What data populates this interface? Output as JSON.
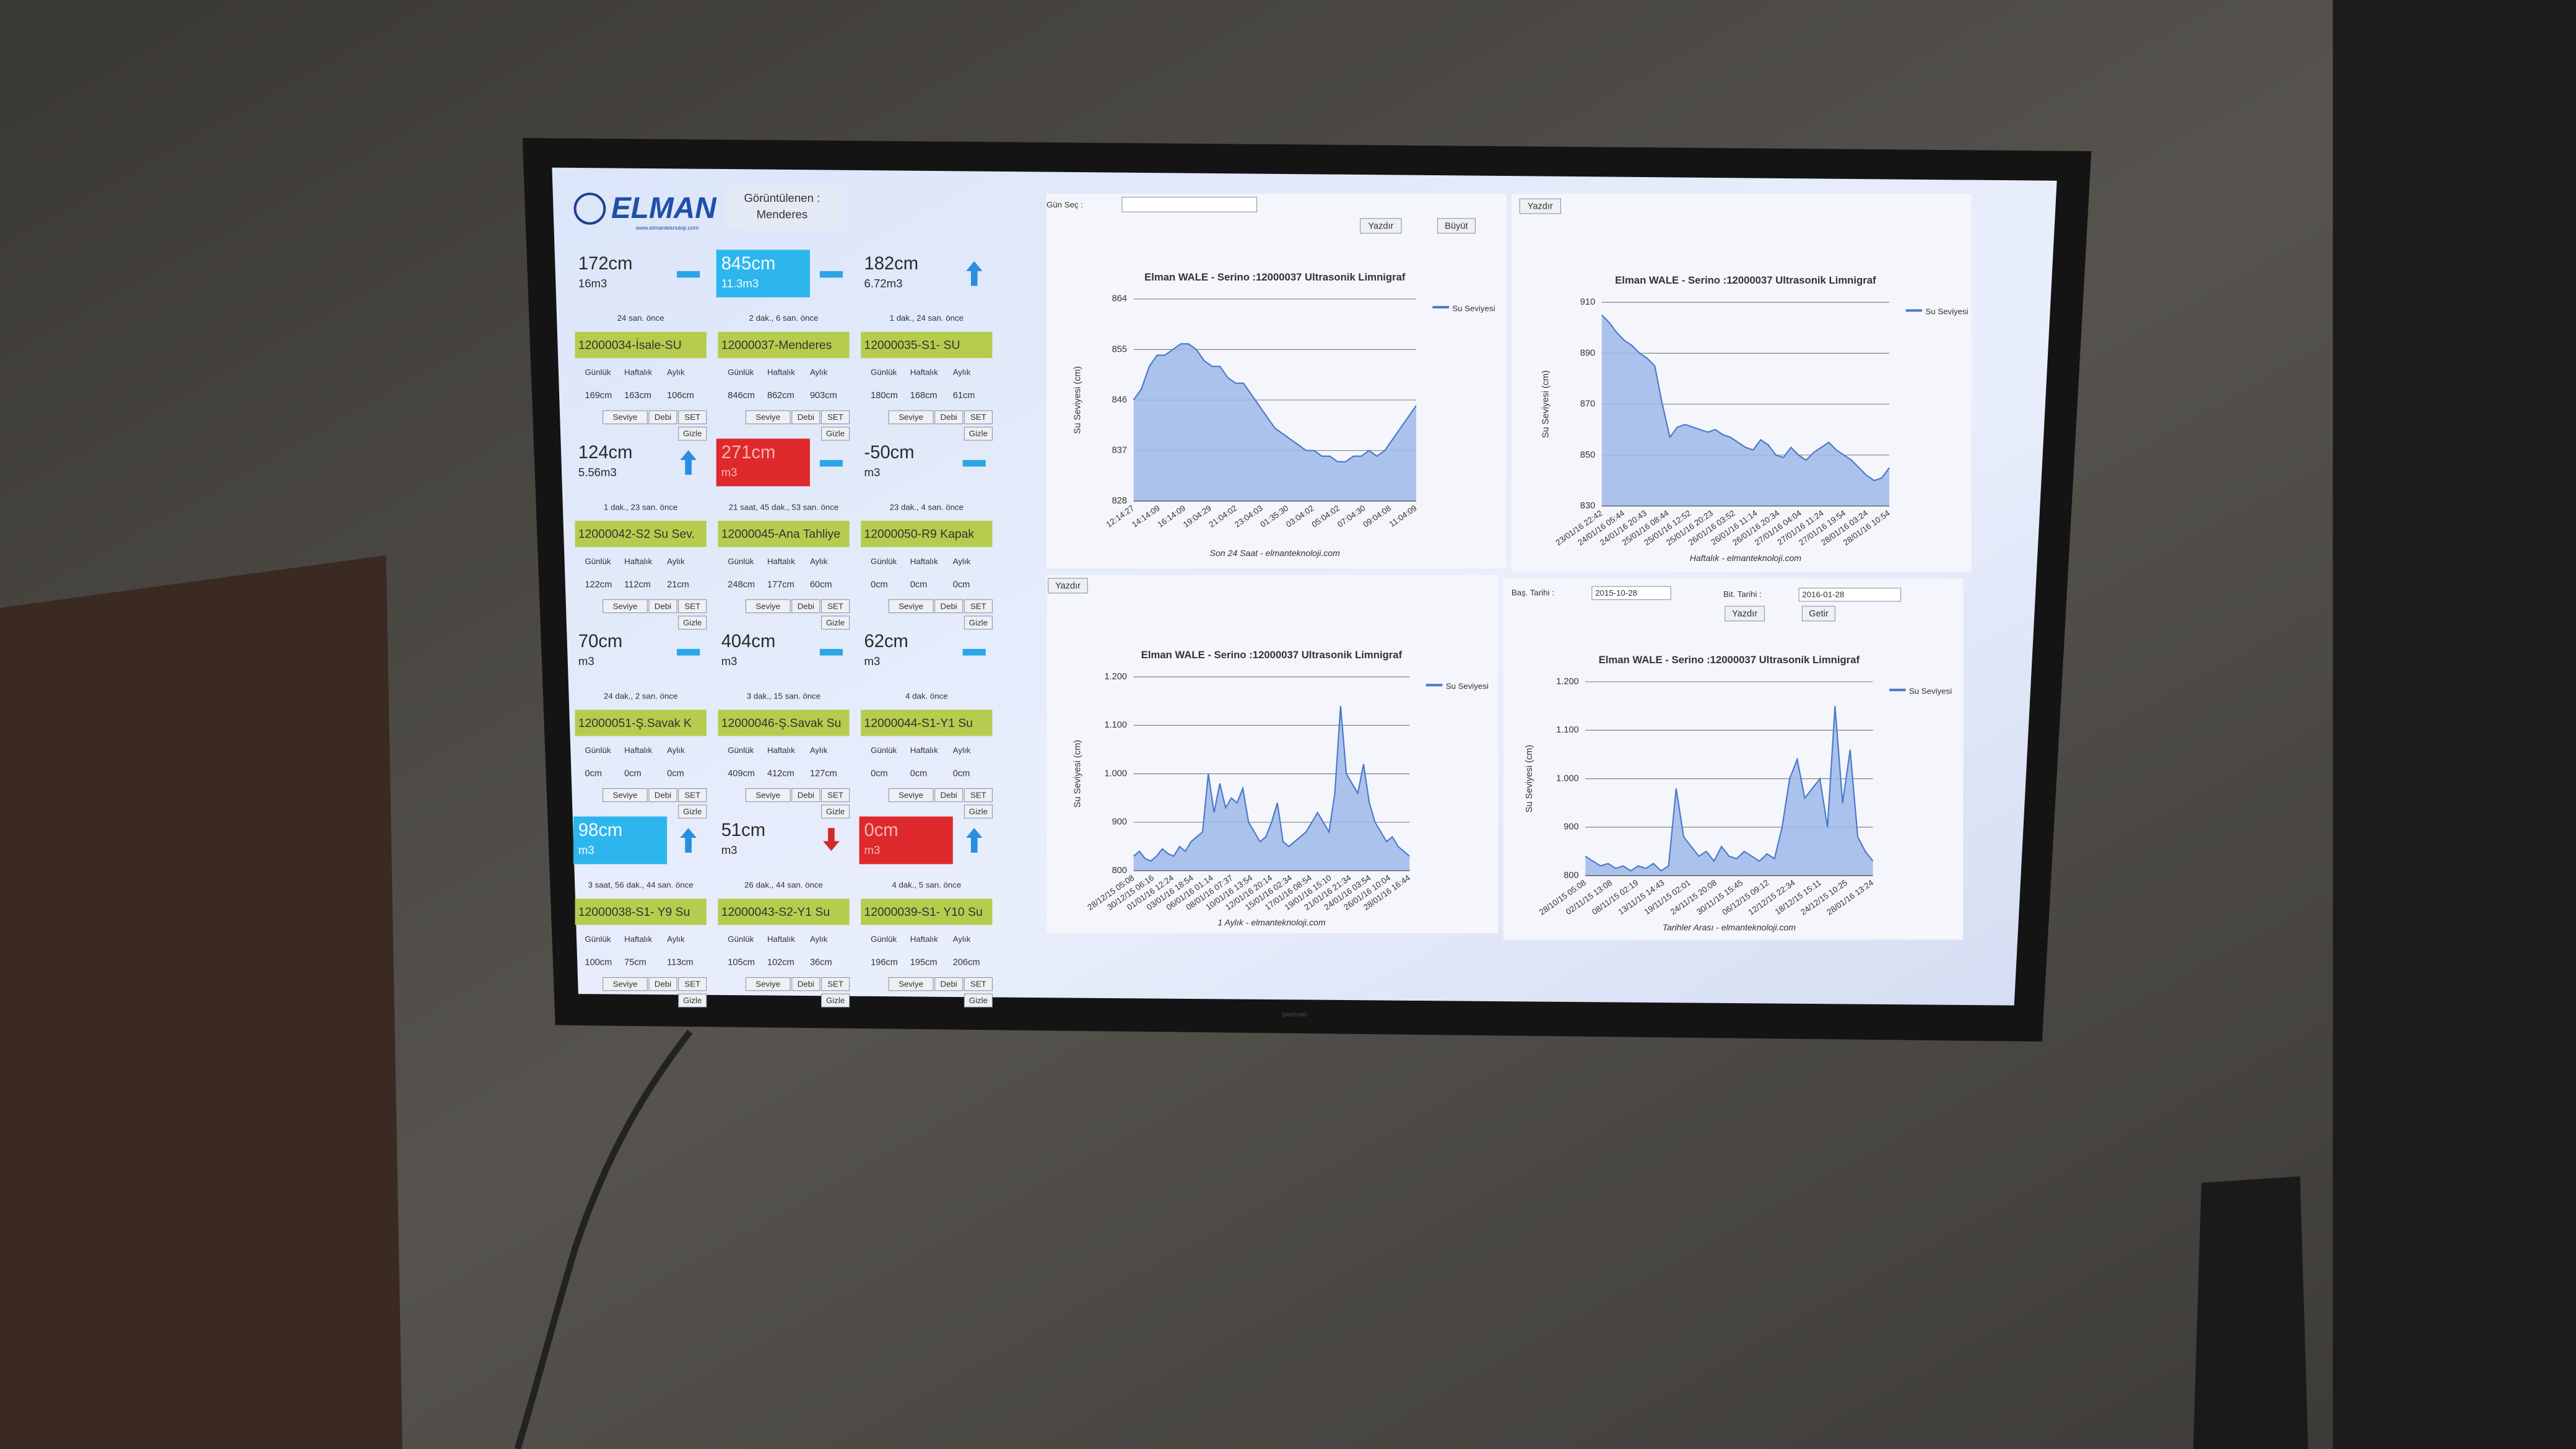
{
  "header": {
    "logo": "ELMAN",
    "logo_url": "www.elmanteknoloji.com",
    "viewing_label": "Görüntülenen :",
    "viewing_value": "Menderes"
  },
  "period_labels": [
    "Günlük",
    "Haftalık",
    "Aylık"
  ],
  "buttons": [
    "Seviye",
    "Debi",
    "SET",
    "Gizle"
  ],
  "stations": [
    {
      "level": "172cm",
      "volume": "16m3",
      "time": "24 san. önce",
      "name": "12000034-İsale-SU",
      "stats": [
        "169cm",
        "163cm",
        "106cm"
      ],
      "indicator": "dash",
      "highlight": null
    },
    {
      "level": "845cm",
      "volume": "11.3m3",
      "time": "2 dak., 6 san. önce",
      "name": "12000037-Menderes",
      "stats": [
        "846cm",
        "862cm",
        "903cm"
      ],
      "indicator": "dash",
      "highlight": "cyan"
    },
    {
      "level": "182cm",
      "volume": "6.72m3",
      "time": "1 dak., 24 san. önce",
      "name": "12000035-S1- SU",
      "stats": [
        "180cm",
        "168cm",
        "61cm"
      ],
      "indicator": "up",
      "highlight": null
    },
    {
      "level": "124cm",
      "volume": "5.56m3",
      "time": "1 dak., 23 san. önce",
      "name": "12000042-S2 Su Sev.",
      "stats": [
        "122cm",
        "112cm",
        "21cm"
      ],
      "indicator": "up",
      "highlight": null
    },
    {
      "level": "271cm",
      "volume": "m3",
      "time": "21 saat, 45 dak., 53 san. önce",
      "name": "12000045-Ana Tahliye",
      "stats": [
        "248cm",
        "177cm",
        "60cm"
      ],
      "indicator": "dash",
      "highlight": "red"
    },
    {
      "level": "-50cm",
      "volume": "m3",
      "time": "23 dak., 4 san. önce",
      "name": "12000050-R9 Kapak",
      "stats": [
        "0cm",
        "0cm",
        "0cm"
      ],
      "indicator": "dash",
      "highlight": null
    },
    {
      "level": "70cm",
      "volume": "m3",
      "time": "24 dak., 2 san. önce",
      "name": "12000051-Ş.Savak K",
      "stats": [
        "0cm",
        "0cm",
        "0cm"
      ],
      "indicator": "dash",
      "highlight": null
    },
    {
      "level": "404cm",
      "volume": "m3",
      "time": "3 dak., 15 san. önce",
      "name": "12000046-Ş.Savak Su",
      "stats": [
        "409cm",
        "412cm",
        "127cm"
      ],
      "indicator": "dash",
      "highlight": null
    },
    {
      "level": "62cm",
      "volume": "m3",
      "time": "4 dak. önce",
      "name": "12000044-S1-Y1 Su",
      "stats": [
        "0cm",
        "0cm",
        "0cm"
      ],
      "indicator": "dash",
      "highlight": null
    },
    {
      "level": "98cm",
      "volume": "m3",
      "time": "3 saat, 56 dak., 44 san. önce",
      "name": "12000038-S1- Y9 Su",
      "stats": [
        "100cm",
        "75cm",
        "113cm"
      ],
      "indicator": "up",
      "highlight": "cyan"
    },
    {
      "level": "51cm",
      "volume": "m3",
      "time": "26 dak., 44 san. önce",
      "name": "12000043-S2-Y1 Su",
      "stats": [
        "105cm",
        "102cm",
        "36cm"
      ],
      "indicator": "down",
      "highlight": null
    },
    {
      "level": "0cm",
      "volume": "m3",
      "time": "4 dak., 5 san. önce",
      "name": "12000039-S1- Y10 Su",
      "stats": [
        "196cm",
        "195cm",
        "206cm"
      ],
      "indicator": "up",
      "highlight": "red"
    }
  ],
  "chart_data": [
    {
      "type": "area",
      "title": "Elman WALE - Serino :12000037 Ultrasonik Limnigraf",
      "y_label": "Su Seviyesi (cm)",
      "caption": "Son 24 Saat - elmanteknoloji.com",
      "controls": [
        "Gün Seç :",
        "Yazdır",
        "Büyüt"
      ],
      "ylim": [
        828,
        864
      ],
      "yticks": [
        828,
        837,
        846,
        855,
        864
      ],
      "grid": true,
      "xtick_labels": [
        "12:14:27",
        "14:14:09",
        "16:14:09",
        "19:04:29",
        "21:04:02",
        "23:04:03",
        "01:35:30",
        "03:04:02",
        "05:04:02",
        "07:04:30",
        "09:04:08",
        "11:04:09"
      ],
      "series": [
        {
          "name": "Su Seviyesi",
          "color": "#4a78c8",
          "values": [
            846,
            848,
            852,
            854,
            854,
            855,
            856,
            856,
            855,
            853,
            852,
            852,
            850,
            849,
            849,
            847,
            845,
            843,
            841,
            840,
            839,
            838,
            837,
            837,
            836,
            836,
            835,
            835,
            836,
            836,
            837,
            836,
            837,
            839,
            841,
            843,
            845
          ]
        }
      ]
    },
    {
      "type": "area",
      "title": "Elman WALE - Serino :12000037 Ultrasonik Limnigraf",
      "y_label": "Su Seviyesi (cm)",
      "caption": "Haftalık - elmanteknoloji.com",
      "controls": [
        "Yazdır"
      ],
      "ylim": [
        830,
        910
      ],
      "yticks": [
        830,
        850,
        870,
        890,
        910
      ],
      "grid": true,
      "xtick_labels": [
        "23/01/16 22:42",
        "24/01/16 05:44",
        "24/01/16 20:43",
        "25/01/16 08:44",
        "25/01/16 12:52",
        "25/01/16 20:23",
        "26/01/16 03:52",
        "26/01/16 11:14",
        "26/01/16 20:34",
        "27/01/16 04:04",
        "27/01/16 11:24",
        "27/01/16 19:54",
        "28/01/16 03:24",
        "28/01/16 10:54"
      ],
      "series": [
        {
          "name": "Su Seviyesi",
          "color": "#4a78c8",
          "values": [
            905,
            902,
            898,
            895,
            893,
            890,
            888,
            885,
            870,
            857,
            861,
            862,
            861,
            860,
            859,
            860,
            858,
            857,
            855,
            853,
            852,
            856,
            854,
            850,
            849,
            853,
            850,
            848,
            851,
            853,
            855,
            852,
            850,
            848,
            845,
            842,
            840,
            841,
            845
          ]
        }
      ]
    },
    {
      "type": "area",
      "title": "Elman WALE - Serino :12000037 Ultrasonik Limnigraf",
      "y_label": "Su Seviyesi (cm)",
      "caption": "1 Aylık - elmanteknoloji.com",
      "controls": [
        "Yazdır"
      ],
      "ylim": [
        800,
        1200
      ],
      "yticks": [
        800,
        900,
        {
          "value": 1000,
          "label": "1.000"
        },
        {
          "value": 1100,
          "label": "1.100"
        },
        {
          "value": 1200,
          "label": "1.200"
        }
      ],
      "grid": true,
      "xtick_labels": [
        "28/12/15 05:08",
        "30/12/15 06:16",
        "01/01/16 12:24",
        "03/01/16 18:54",
        "06/01/16 01:14",
        "08/01/16 07:37",
        "10/01/16 13:54",
        "12/01/16 20:14",
        "15/01/16 02:34",
        "17/01/16 08:54",
        "19/01/16 15:10",
        "21/01/16 21:34",
        "24/01/16 03:54",
        "26/01/16 10:04",
        "28/01/16 16:44"
      ],
      "series": [
        {
          "name": "Su Seviyesi",
          "color": "#4a78c8",
          "values": [
            830,
            840,
            825,
            820,
            830,
            845,
            835,
            830,
            850,
            840,
            860,
            870,
            880,
            1000,
            920,
            980,
            930,
            950,
            940,
            970,
            900,
            880,
            860,
            870,
            900,
            940,
            860,
            850,
            860,
            870,
            880,
            900,
            920,
            900,
            880,
            960,
            1140,
            1000,
            980,
            960,
            1020,
            940,
            900,
            880,
            860,
            870,
            850,
            840,
            830
          ]
        }
      ]
    },
    {
      "type": "area",
      "title": "Elman WALE - Serino :12000037 Ultrasonik Limnigraf",
      "y_label": "Su Seviyesi (cm)",
      "caption": "Tarihler Arası - elmanteknoloji.com",
      "controls": [
        "Baş. Tarihi :",
        "2015-10-28",
        "Bit. Tarihi :",
        "2016-01-28",
        "Yazdır",
        "Getir"
      ],
      "ylim": [
        800,
        1200
      ],
      "yticks": [
        800,
        900,
        {
          "value": 1000,
          "label": "1.000"
        },
        {
          "value": 1100,
          "label": "1.100"
        },
        {
          "value": 1200,
          "label": "1.200"
        }
      ],
      "grid": true,
      "xtick_labels": [
        "28/10/15 05:08",
        "02/11/15 13:08",
        "08/11/15 02:19",
        "13/11/15 14:43",
        "19/11/15 02:01",
        "24/11/15 20:08",
        "30/11/15 15:45",
        "06/12/15 09:12",
        "12/12/15 22:34",
        "18/12/15 15:11",
        "24/12/15 10:25",
        "28/01/16 13:24"
      ],
      "series": [
        {
          "name": "Su Seviyesi",
          "color": "#4a78c8",
          "values": [
            840,
            830,
            820,
            825,
            815,
            820,
            810,
            820,
            815,
            825,
            810,
            820,
            980,
            880,
            860,
            840,
            850,
            830,
            860,
            840,
            835,
            850,
            840,
            830,
            845,
            835,
            900,
            1000,
            1040,
            960,
            980,
            1000,
            900,
            1150,
            950,
            1060,
            880,
            850,
            830
          ]
        }
      ]
    }
  ]
}
